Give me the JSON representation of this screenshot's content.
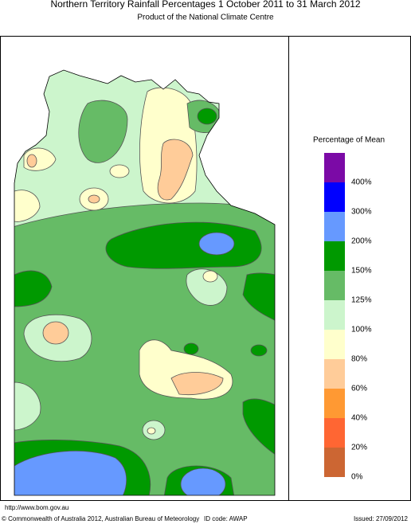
{
  "header": {
    "title": "Northern Territory Rainfall Percentages 1 October 2011 to 31 March 2012",
    "subtitle": "Product of the National Climate Centre"
  },
  "legend": {
    "title": "Percentage of Mean",
    "labels": [
      "400%",
      "300%",
      "200%",
      "150%",
      "125%",
      "100%",
      "80%",
      "60%",
      "40%",
      "20%",
      "0%"
    ],
    "colors": [
      "#7b0aa6",
      "#0000ff",
      "#6699ff",
      "#009900",
      "#66bb66",
      "#ccf5cc",
      "#ffffcc",
      "#ffcc99",
      "#ff9933",
      "#ff6633",
      "#cc6633"
    ]
  },
  "footer": {
    "url": "http://www.bom.gov.au",
    "copyright": "© Commonwealth of Australia 2012, Australian Bureau of Meteorology",
    "id_code": "ID code: AWAP",
    "issued": "Issued: 27/09/2012"
  }
}
